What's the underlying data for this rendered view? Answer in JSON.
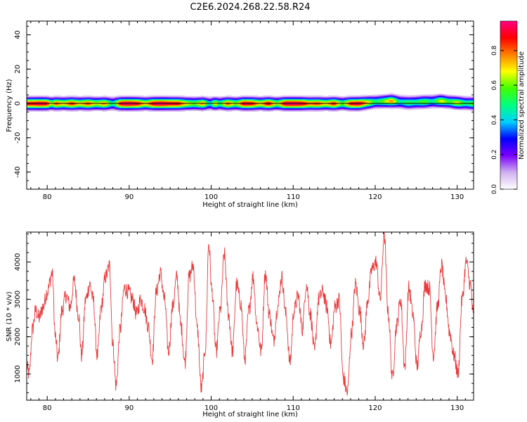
{
  "figure_title": "C2E6.2024.268.22.58.R24",
  "chart_data": [
    {
      "type": "heatmap",
      "xlabel": "Height of straight line (km)",
      "ylabel": "Frequency (Hz)",
      "xlim": [
        77.5,
        132
      ],
      "ylim": [
        -50,
        48
      ],
      "x_ticks": [
        80,
        90,
        100,
        110,
        120,
        130
      ],
      "y_ticks": [
        -40,
        -20,
        0,
        20,
        40
      ],
      "colorbar": {
        "label": "Normalized spectral amplitude",
        "range": [
          0,
          0.97
        ],
        "ticks": [
          0.0,
          0.2,
          0.4,
          0.6,
          0.8
        ],
        "colormap": [
          "#ffffff",
          "#d0b0f0",
          "#7a00ff",
          "#0000ff",
          "#00d0ff",
          "#00ff80",
          "#40ff00",
          "#ffff00",
          "#ff8000",
          "#ff0000",
          "#ff0080"
        ]
      },
      "grid": false,
      "ridge_frequency_hz": 0,
      "ridge_halfwidth_hz": 3,
      "ridge_offsets_hz": [
        [
          78,
          0
        ],
        [
          118,
          0
        ],
        [
          120,
          1
        ],
        [
          122,
          1.5
        ],
        [
          124,
          0.5
        ],
        [
          126,
          1
        ],
        [
          128,
          1.5
        ],
        [
          130,
          0.5
        ],
        [
          132,
          0
        ]
      ],
      "amplitude_profile": [
        [
          78,
          0.9
        ],
        [
          79,
          0.95
        ],
        [
          80,
          0.92
        ],
        [
          80.5,
          0.6
        ],
        [
          81,
          0.85
        ],
        [
          82,
          0.7
        ],
        [
          83,
          0.88
        ],
        [
          84,
          0.7
        ],
        [
          85,
          0.85
        ],
        [
          86,
          0.65
        ],
        [
          87,
          0.8
        ],
        [
          88,
          0.45
        ],
        [
          89,
          0.95
        ],
        [
          90,
          0.97
        ],
        [
          91,
          0.92
        ],
        [
          92,
          0.7
        ],
        [
          93,
          0.95
        ],
        [
          94,
          0.97
        ],
        [
          95,
          0.92
        ],
        [
          96,
          0.9
        ],
        [
          97,
          0.7
        ],
        [
          98,
          0.6
        ],
        [
          99,
          0.8
        ],
        [
          99.8,
          0.4
        ],
        [
          100.5,
          0.75
        ],
        [
          101,
          0.5
        ],
        [
          102,
          0.85
        ],
        [
          103,
          0.6
        ],
        [
          104,
          0.95
        ],
        [
          105,
          0.9
        ],
        [
          106,
          0.7
        ],
        [
          107,
          0.95
        ],
        [
          108,
          0.6
        ],
        [
          109,
          0.97
        ],
        [
          110,
          0.97
        ],
        [
          111,
          0.95
        ],
        [
          112,
          0.8
        ],
        [
          113,
          0.85
        ],
        [
          114,
          0.7
        ],
        [
          115,
          0.9
        ],
        [
          116,
          0.55
        ],
        [
          117,
          0.9
        ],
        [
          118,
          0.95
        ],
        [
          119,
          0.75
        ],
        [
          120,
          0.5
        ],
        [
          121,
          0.6
        ],
        [
          122,
          0.8
        ],
        [
          123,
          0.45
        ],
        [
          124,
          0.55
        ],
        [
          125,
          0.5
        ],
        [
          126,
          0.6
        ],
        [
          127,
          0.45
        ],
        [
          128,
          0.7
        ],
        [
          129,
          0.55
        ],
        [
          130,
          0.7
        ],
        [
          131,
          0.5
        ],
        [
          132,
          0.6
        ]
      ]
    },
    {
      "type": "line",
      "xlabel": "Height of straight line (km)",
      "ylabel": "SNR (10 * v/v)",
      "xlim": [
        77.5,
        132
      ],
      "ylim": [
        300,
        4800
      ],
      "x_ticks": [
        80,
        90,
        100,
        110,
        120,
        130
      ],
      "y_ticks": [
        1000,
        2000,
        3000,
        4000
      ],
      "grid": false,
      "series": [
        {
          "color": "#e83a3a",
          "x": [
            77.5,
            77.8,
            78.2,
            78.6,
            79.0,
            79.5,
            80.0,
            80.6,
            81.0,
            81.3,
            81.8,
            82.3,
            82.8,
            83.3,
            83.8,
            84.2,
            84.7,
            85.2,
            85.6,
            86.1,
            86.6,
            87.1,
            87.6,
            88.0,
            88.4,
            88.9,
            89.4,
            89.9,
            90.4,
            90.9,
            91.4,
            91.8,
            92.3,
            92.8,
            93.3,
            93.8,
            94.3,
            94.8,
            95.3,
            95.8,
            96.3,
            96.8,
            97.3,
            97.8,
            98.3,
            98.8,
            99.3,
            99.7,
            100.1,
            100.6,
            101.1,
            101.6,
            102.1,
            102.6,
            103.1,
            103.6,
            104.1,
            104.6,
            105.1,
            105.6,
            106.1,
            106.6,
            107.1,
            107.6,
            108.1,
            108.6,
            109.1,
            109.6,
            110.1,
            110.6,
            111.1,
            111.6,
            112.1,
            112.6,
            113.1,
            113.6,
            114.1,
            114.6,
            115.1,
            115.6,
            116.1,
            116.6,
            117.1,
            117.6,
            118.1,
            118.6,
            119.1,
            119.6,
            120.1,
            120.6,
            121.1,
            121.6,
            122.1,
            122.6,
            123.1,
            123.6,
            124.1,
            124.6,
            125.1,
            125.6,
            126.1,
            126.6,
            127.1,
            127.6,
            128.1,
            128.6,
            129.1,
            129.6,
            130.1,
            130.6,
            131.1,
            131.6,
            132.0
          ],
          "y": [
            1200,
            1000,
            2200,
            2700,
            2500,
            2800,
            3200,
            3700,
            2000,
            1400,
            2700,
            3100,
            2800,
            3500,
            2600,
            1500,
            3000,
            3400,
            3000,
            1500,
            2800,
            3600,
            3900,
            1800,
            700,
            2200,
            3300,
            3200,
            3000,
            2600,
            3000,
            2800,
            2300,
            1400,
            3200,
            3700,
            3000,
            1600,
            2800,
            3600,
            2300,
            1300,
            3600,
            3900,
            2200,
            600,
            1700,
            4500,
            3200,
            1600,
            2700,
            4200,
            2600,
            1600,
            3400,
            2900,
            1400,
            2700,
            3600,
            2300,
            1600,
            3700,
            2600,
            1900,
            2800,
            3600,
            2600,
            1300,
            2700,
            3100,
            2200,
            3400,
            2600,
            1600,
            3000,
            3200,
            2800,
            1800,
            2800,
            3000,
            900,
            500,
            2100,
            3400,
            2700,
            1800,
            3000,
            3800,
            4000,
            3000,
            4700,
            2600,
            900,
            2300,
            3000,
            1200,
            3300,
            2600,
            1200,
            2200,
            3400,
            3300,
            1500,
            2800,
            3900,
            3000,
            2100,
            1500,
            1000,
            3000,
            4000,
            3400,
            2500
          ]
        }
      ]
    }
  ]
}
